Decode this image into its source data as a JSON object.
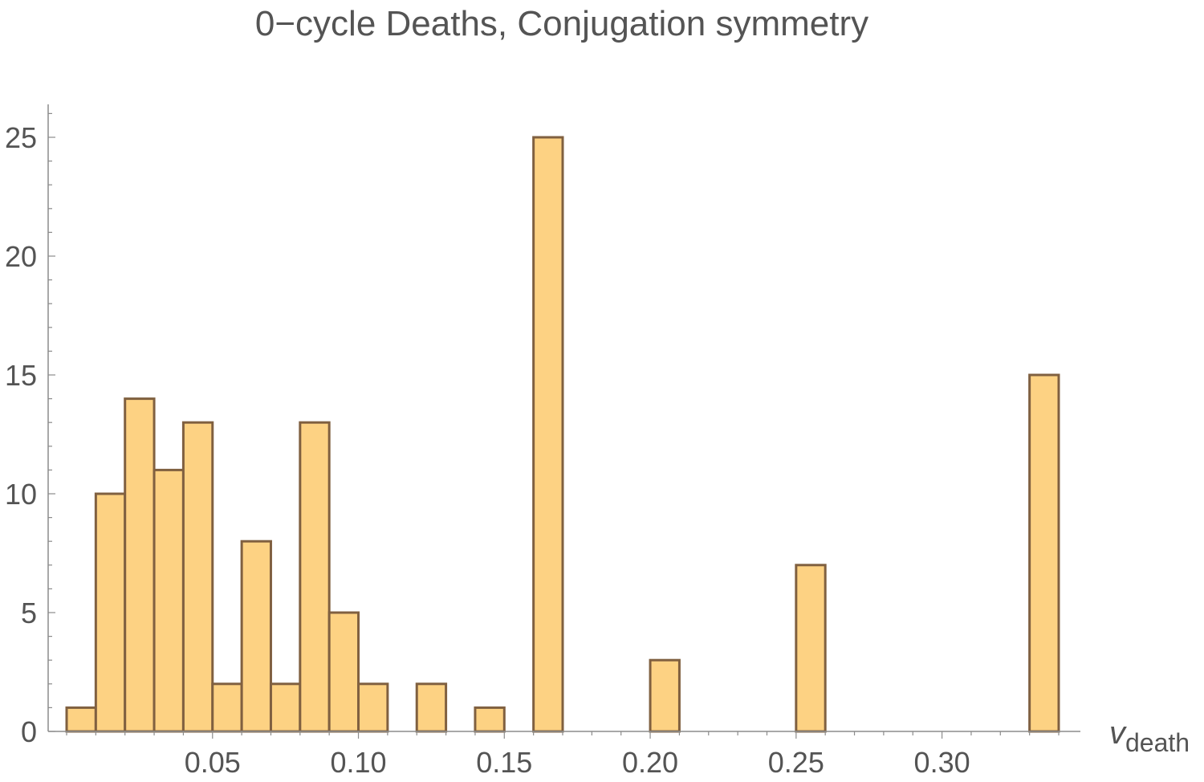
{
  "chart_data": {
    "type": "bar",
    "title": "0−cycle Deaths, Conjugation symmetry",
    "xlabel": {
      "main": "v",
      "sub": "death"
    },
    "ylabel": "",
    "xlim": [
      0.0,
      0.3475
    ],
    "ylim": [
      0,
      26.5
    ],
    "x_ticks": [
      {
        "value": 0.05,
        "label": "0.05"
      },
      {
        "value": 0.1,
        "label": "0.10"
      },
      {
        "value": 0.15,
        "label": "0.15"
      },
      {
        "value": 0.2,
        "label": "0.20"
      },
      {
        "value": 0.25,
        "label": "0.25"
      },
      {
        "value": 0.3,
        "label": "0.30"
      }
    ],
    "y_ticks": [
      {
        "value": 0,
        "label": "0"
      },
      {
        "value": 5,
        "label": "5"
      },
      {
        "value": 10,
        "label": "10"
      },
      {
        "value": 15,
        "label": "15"
      },
      {
        "value": 20,
        "label": "20"
      },
      {
        "value": 25,
        "label": "25"
      }
    ],
    "bin_width": 0.01,
    "bins": [
      {
        "x0": 0.0,
        "x1": 0.01,
        "count": 1
      },
      {
        "x0": 0.01,
        "x1": 0.02,
        "count": 10
      },
      {
        "x0": 0.02,
        "x1": 0.03,
        "count": 14
      },
      {
        "x0": 0.03,
        "x1": 0.04,
        "count": 11
      },
      {
        "x0": 0.04,
        "x1": 0.05,
        "count": 13
      },
      {
        "x0": 0.05,
        "x1": 0.06,
        "count": 2
      },
      {
        "x0": 0.06,
        "x1": 0.07,
        "count": 8
      },
      {
        "x0": 0.07,
        "x1": 0.08,
        "count": 2
      },
      {
        "x0": 0.08,
        "x1": 0.09,
        "count": 13
      },
      {
        "x0": 0.09,
        "x1": 0.1,
        "count": 5
      },
      {
        "x0": 0.1,
        "x1": 0.11,
        "count": 2
      },
      {
        "x0": 0.12,
        "x1": 0.13,
        "count": 2
      },
      {
        "x0": 0.14,
        "x1": 0.15,
        "count": 1
      },
      {
        "x0": 0.16,
        "x1": 0.17,
        "count": 25
      },
      {
        "x0": 0.2,
        "x1": 0.21,
        "count": 3
      },
      {
        "x0": 0.25,
        "x1": 0.26,
        "count": 7
      },
      {
        "x0": 0.33,
        "x1": 0.34,
        "count": 15
      }
    ],
    "bar_fill": "#fdd283",
    "bar_stroke": "#806040",
    "axis_color": "#8c8c8c",
    "text_color": "#545454",
    "grid": false,
    "legend": "none"
  }
}
